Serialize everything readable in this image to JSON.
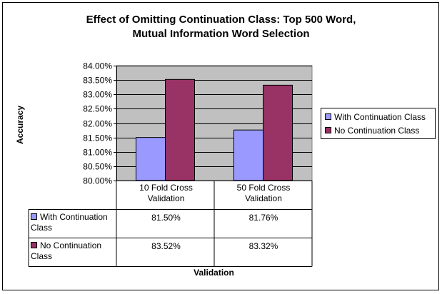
{
  "colors": {
    "plot_bg": "#C0C0C0",
    "with_series": "#9999FF",
    "without_series": "#993366",
    "grid": "#000000"
  },
  "chart_data": {
    "type": "bar",
    "title_lines": [
      "Effect of Omitting Continuation Class: Top 500 Word,",
      "Mutual Information Word Selection"
    ],
    "xlabel": "Validation",
    "ylabel": "Accuracy",
    "categories": [
      [
        "10 Fold Cross",
        "Validation"
      ],
      [
        "50 Fold Cross",
        "Validation"
      ]
    ],
    "series": [
      {
        "name": "With Continuation Class",
        "name_lines": [
          "With Continuation",
          "Class"
        ],
        "values": [
          81.5,
          81.76
        ],
        "labels": [
          "81.50%",
          "81.76%"
        ],
        "color": "#9999FF"
      },
      {
        "name": "No Continuation Class",
        "name_lines": [
          "No Continuation",
          "Class"
        ],
        "values": [
          83.52,
          83.32
        ],
        "labels": [
          "83.52%",
          "83.32%"
        ],
        "color": "#993366"
      }
    ],
    "ylim": [
      80.0,
      84.0
    ],
    "yticks": [
      84.0,
      83.5,
      83.0,
      82.5,
      82.0,
      81.5,
      81.0,
      80.5,
      80.0
    ],
    "ytick_labels": [
      "84.00%",
      "83.50%",
      "83.00%",
      "82.50%",
      "82.00%",
      "81.50%",
      "81.00%",
      "80.50%",
      "80.00%"
    ],
    "grid": true,
    "legend_position": "right",
    "data_table": true
  }
}
